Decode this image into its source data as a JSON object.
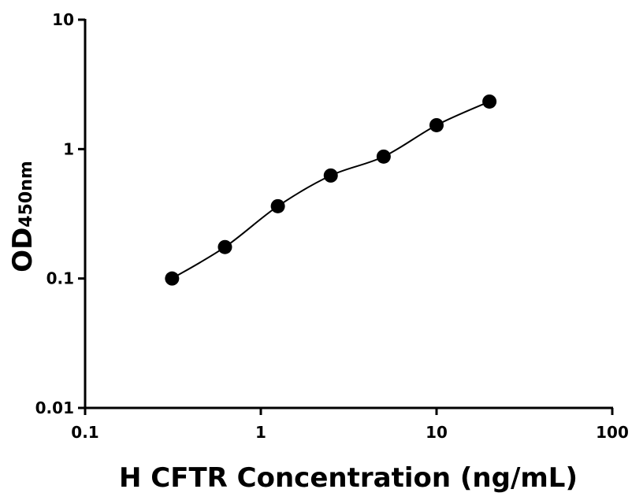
{
  "chart_data": {
    "type": "scatter",
    "x_label": "H CFTR Concentration (ng/mL)",
    "y_label": "OD",
    "y_label_subscript": "450nm",
    "x": [
      0.3125,
      0.625,
      1.25,
      2.5,
      5,
      10,
      20
    ],
    "values": [
      0.1,
      0.175,
      0.362,
      0.625,
      0.875,
      1.53,
      2.33
    ],
    "color": "#000000",
    "xlim": [
      0.1,
      100
    ],
    "ylim": [
      0.01,
      10
    ],
    "xticks": [
      0.1,
      1,
      10,
      100
    ],
    "yticks": [
      0.01,
      0.1,
      1,
      10
    ],
    "xscale": "log",
    "yscale": "log",
    "fit_line": true
  }
}
